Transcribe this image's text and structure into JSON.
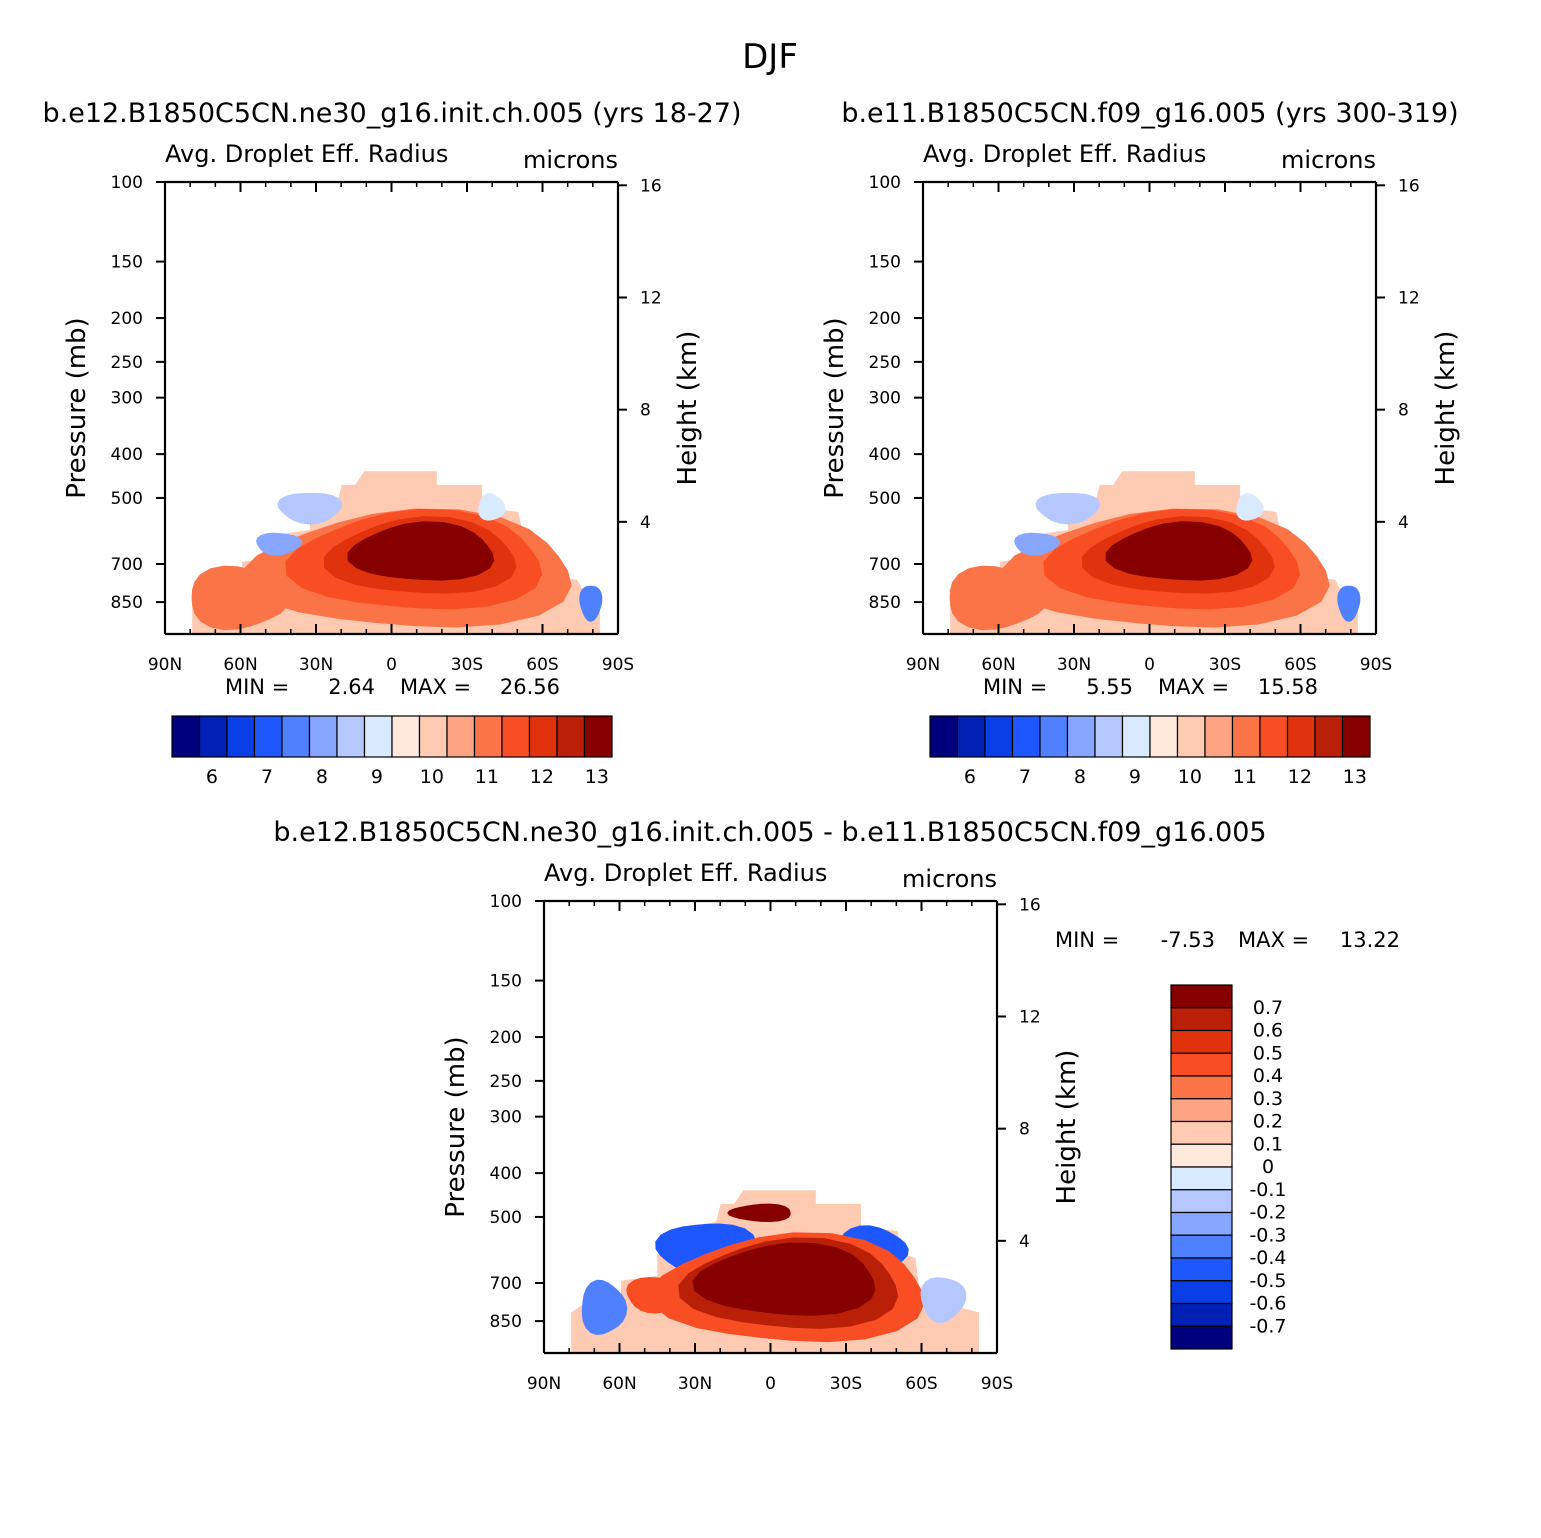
{
  "figure": {
    "title": "DJF",
    "colors": {
      "abs_scale": [
        "#00007f",
        "#0021b3",
        "#0a3ee6",
        "#1f57ff",
        "#4f81ff",
        "#86a6ff",
        "#b4c8ff",
        "#d9eaff",
        "#ffe9dc",
        "#fecab2",
        "#fca483",
        "#fb7448",
        "#f94e23",
        "#e0330d",
        "#ba1f08",
        "#870000"
      ],
      "diff_scale": [
        "#870000",
        "#ba1f08",
        "#e0330d",
        "#f94e23",
        "#fb7448",
        "#fca483",
        "#fecab2",
        "#ffe9dc",
        "#d9eaff",
        "#b4c8ff",
        "#86a6ff",
        "#4f81ff",
        "#1f57ff",
        "#0a3ee6",
        "#0021b3",
        "#00007f"
      ]
    }
  },
  "chart_data": [
    {
      "type": "heatmap",
      "run_title": "b.e12.B1850C5CN.ne30_g16.init.ch.005 (yrs 18-27)",
      "variable": "Avg. Droplet Eff. Radius",
      "units": "microns",
      "xlabel": "",
      "ylabel": "Pressure (mb)",
      "ylabel_right": "Height (km)",
      "x_ticks": [
        "90N",
        "60N",
        "30N",
        "0",
        "30S",
        "60S",
        "90S"
      ],
      "y_ticks": [
        "100",
        "150",
        "200",
        "250",
        "300",
        "400",
        "500",
        "700",
        "850"
      ],
      "y_ticks_right": [
        "16",
        "12",
        "8",
        "4"
      ],
      "ylim": [
        1000,
        100
      ],
      "yscale": "log",
      "min_label": "MIN =",
      "min_value": "2.64",
      "max_label": "MAX =",
      "max_value": "26.56",
      "colorbar_labels": [
        "6",
        "7",
        "8",
        "9",
        "10",
        "11",
        "12",
        "13"
      ],
      "colorbar_orientation": "horizontal"
    },
    {
      "type": "heatmap",
      "run_title": "b.e11.B1850C5CN.f09_g16.005 (yrs 300-319)",
      "variable": "Avg. Droplet Eff. Radius",
      "units": "microns",
      "xlabel": "",
      "ylabel": "Pressure (mb)",
      "ylabel_right": "Height (km)",
      "x_ticks": [
        "90N",
        "60N",
        "30N",
        "0",
        "30S",
        "60S",
        "90S"
      ],
      "y_ticks": [
        "100",
        "150",
        "200",
        "250",
        "300",
        "400",
        "500",
        "700",
        "850"
      ],
      "y_ticks_right": [
        "16",
        "12",
        "8",
        "4"
      ],
      "ylim": [
        1000,
        100
      ],
      "yscale": "log",
      "min_label": "MIN =",
      "min_value": "5.55",
      "max_label": "MAX =",
      "max_value": "15.58",
      "colorbar_labels": [
        "6",
        "7",
        "8",
        "9",
        "10",
        "11",
        "12",
        "13"
      ],
      "colorbar_orientation": "horizontal"
    },
    {
      "type": "heatmap",
      "run_title": "b.e12.B1850C5CN.ne30_g16.init.ch.005 - b.e11.B1850C5CN.f09_g16.005",
      "variable": "Avg. Droplet Eff. Radius",
      "units": "microns",
      "xlabel": "",
      "ylabel": "Pressure (mb)",
      "ylabel_right": "Height (km)",
      "x_ticks": [
        "90N",
        "60N",
        "30N",
        "0",
        "30S",
        "60S",
        "90S"
      ],
      "y_ticks": [
        "100",
        "150",
        "200",
        "250",
        "300",
        "400",
        "500",
        "700",
        "850"
      ],
      "y_ticks_right": [
        "16",
        "12",
        "8",
        "4"
      ],
      "ylim": [
        1000,
        100
      ],
      "yscale": "log",
      "min_label": "MIN =",
      "min_value": "-7.53",
      "max_label": "MAX =",
      "max_value": "13.22",
      "colorbar_labels": [
        "0.7",
        "0.6",
        "0.5",
        "0.4",
        "0.3",
        "0.2",
        "0.1",
        "0",
        "-0.1",
        "-0.2",
        "-0.3",
        "-0.4",
        "-0.5",
        "-0.6",
        "-0.7"
      ],
      "colorbar_orientation": "vertical"
    }
  ]
}
